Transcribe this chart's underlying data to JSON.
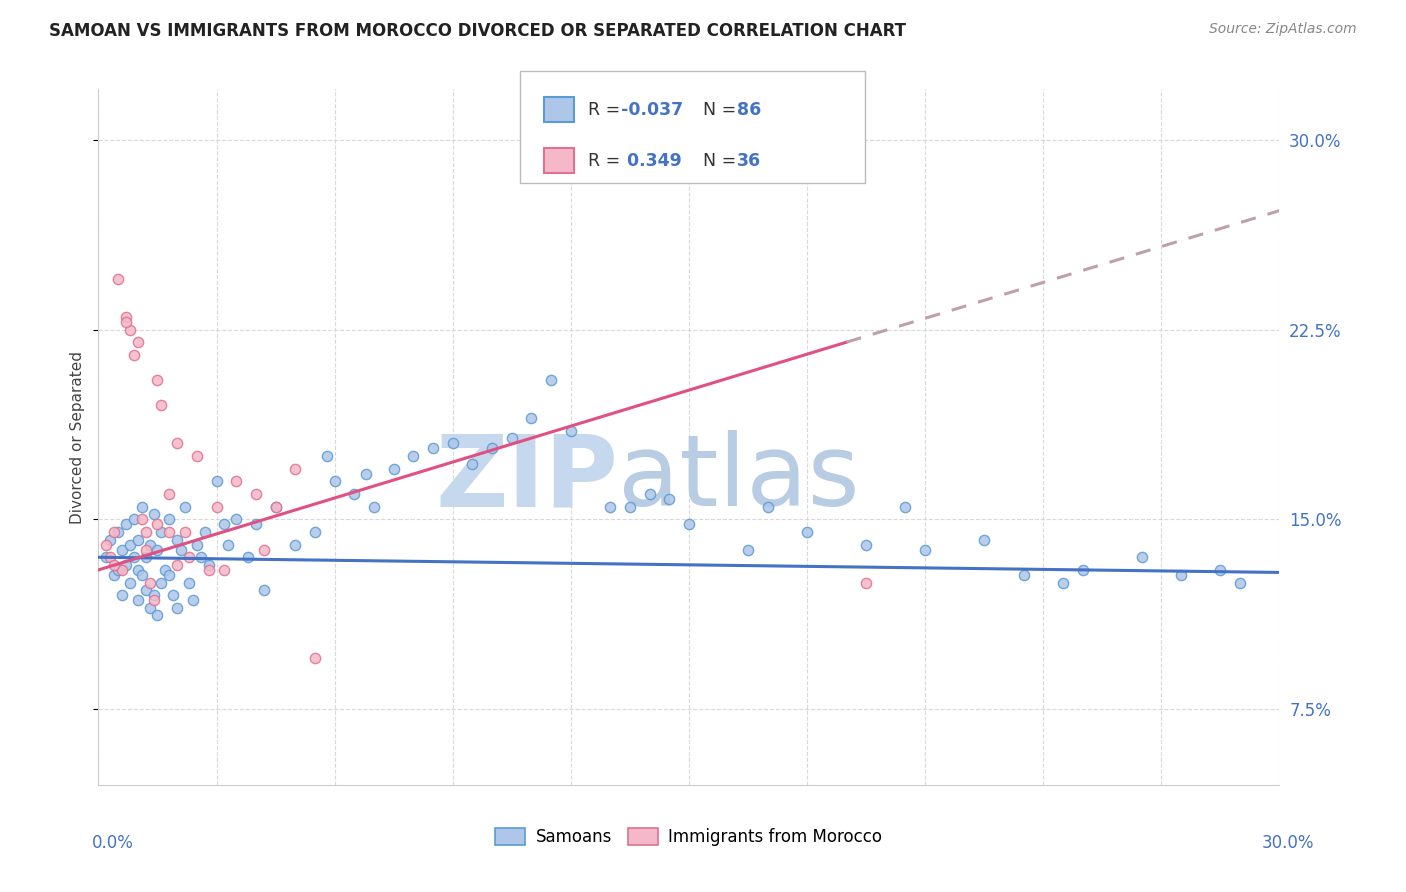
{
  "title": "SAMOAN VS IMMIGRANTS FROM MOROCCO DIVORCED OR SEPARATED CORRELATION CHART",
  "source": "Source: ZipAtlas.com",
  "xmin": 0.0,
  "xmax": 30.0,
  "ymin": 4.5,
  "ymax": 32.0,
  "ytick_vals": [
    7.5,
    15.0,
    22.5,
    30.0
  ],
  "xtick_vals": [
    0,
    3,
    6,
    9,
    12,
    15,
    18,
    21,
    24,
    27,
    30
  ],
  "color_blue_fill": "#aec6e8",
  "color_blue_edge": "#5b9bd5",
  "color_pink_fill": "#f4b8c8",
  "color_pink_edge": "#e07090",
  "color_blue_line": "#4472c4",
  "color_pink_line": "#e05080",
  "color_dashed_line": "#c0a0a8",
  "color_text_blue": "#4472c4",
  "color_title": "#222222",
  "color_source": "#888888",
  "color_watermark_zip": "#c5d8ee",
  "color_watermark_atlas": "#b8cce4",
  "color_grid": "#d0d0d0",
  "ylabel": "Divorced or Separated",
  "label_samoans": "Samoans",
  "label_morocco": "Immigrants from Morocco",
  "blue_line_x0": 0.0,
  "blue_line_x1": 30.0,
  "blue_line_y0": 13.5,
  "blue_line_y1": 12.9,
  "pink_solid_x0": 0.0,
  "pink_solid_x1": 19.0,
  "pink_solid_y0": 13.0,
  "pink_solid_y1": 22.0,
  "pink_dashed_x0": 19.0,
  "pink_dashed_x1": 30.0,
  "pink_dashed_y0": 22.0,
  "pink_dashed_y1": 27.2,
  "samoans_x": [
    0.2,
    0.3,
    0.4,
    0.5,
    0.5,
    0.6,
    0.6,
    0.7,
    0.7,
    0.8,
    0.8,
    0.9,
    0.9,
    1.0,
    1.0,
    1.0,
    1.1,
    1.1,
    1.2,
    1.2,
    1.3,
    1.3,
    1.4,
    1.4,
    1.5,
    1.5,
    1.6,
    1.6,
    1.7,
    1.8,
    1.8,
    1.9,
    2.0,
    2.0,
    2.1,
    2.2,
    2.3,
    2.4,
    2.5,
    2.6,
    2.8,
    3.0,
    3.2,
    3.5,
    3.8,
    4.0,
    4.5,
    5.0,
    5.5,
    6.0,
    6.5,
    7.0,
    7.5,
    8.0,
    9.0,
    9.5,
    10.0,
    11.0,
    12.0,
    13.0,
    14.0,
    15.0,
    16.5,
    17.0,
    18.0,
    19.5,
    20.5,
    21.0,
    22.5,
    23.5,
    24.5,
    25.0,
    26.5,
    27.5,
    28.5,
    29.0,
    11.5,
    13.5,
    4.2,
    5.8,
    8.5,
    10.5,
    3.3,
    6.8,
    2.7,
    14.5
  ],
  "samoans_y": [
    13.5,
    14.2,
    12.8,
    13.0,
    14.5,
    12.0,
    13.8,
    13.2,
    14.8,
    12.5,
    14.0,
    13.5,
    15.0,
    11.8,
    13.0,
    14.2,
    12.8,
    15.5,
    13.5,
    12.2,
    11.5,
    14.0,
    12.0,
    15.2,
    13.8,
    11.2,
    12.5,
    14.5,
    13.0,
    12.8,
    15.0,
    12.0,
    11.5,
    14.2,
    13.8,
    15.5,
    12.5,
    11.8,
    14.0,
    13.5,
    13.2,
    16.5,
    14.8,
    15.0,
    13.5,
    14.8,
    15.5,
    14.0,
    14.5,
    16.5,
    16.0,
    15.5,
    17.0,
    17.5,
    18.0,
    17.2,
    17.8,
    19.0,
    18.5,
    15.5,
    16.0,
    14.8,
    13.8,
    15.5,
    14.5,
    14.0,
    15.5,
    13.8,
    14.2,
    12.8,
    12.5,
    13.0,
    13.5,
    12.8,
    13.0,
    12.5,
    20.5,
    15.5,
    12.2,
    17.5,
    17.8,
    18.2,
    14.0,
    16.8,
    14.5,
    15.8
  ],
  "morocco_x": [
    0.2,
    0.3,
    0.4,
    0.5,
    0.6,
    0.7,
    0.8,
    0.9,
    1.0,
    1.1,
    1.2,
    1.3,
    1.4,
    1.5,
    1.6,
    1.8,
    2.0,
    2.2,
    2.5,
    2.8,
    3.0,
    3.5,
    4.0,
    4.5,
    5.0,
    0.4,
    0.7,
    1.2,
    1.8,
    2.3,
    3.2,
    4.2,
    5.5,
    19.5,
    1.5,
    2.0
  ],
  "morocco_y": [
    14.0,
    13.5,
    14.5,
    24.5,
    13.0,
    23.0,
    22.5,
    21.5,
    22.0,
    15.0,
    14.5,
    12.5,
    11.8,
    20.5,
    19.5,
    16.0,
    18.0,
    14.5,
    17.5,
    13.0,
    15.5,
    16.5,
    16.0,
    15.5,
    17.0,
    13.2,
    22.8,
    13.8,
    14.5,
    13.5,
    13.0,
    13.8,
    9.5,
    12.5,
    14.8,
    13.2
  ]
}
